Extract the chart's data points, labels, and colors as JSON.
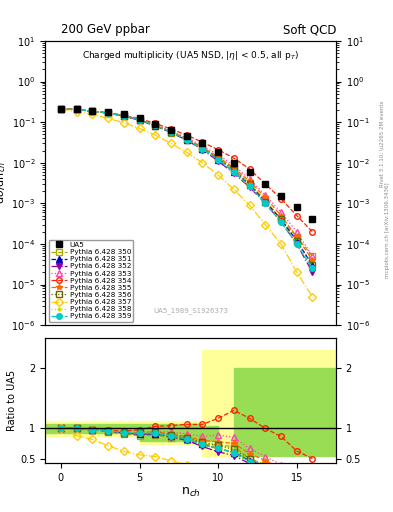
{
  "title_left": "200 GeV ppbar",
  "title_right": "Soft QCD",
  "plot_title": "Charged multiplicity (UA5 NSD, |\\u03b7| < 0.5, all p_T)",
  "xlabel": "n_{ch}",
  "ylabel_main": "d\\u03c3/dn_{ch}",
  "ylabel_ratio": "Ratio to UA5",
  "ref_label": "UA5_1989_S1926373",
  "right_label1": "Rivet 3.1.10; \\u2265 2M events",
  "right_label2": "mcplots.cern.ch [arXiv:1306.3436]",
  "nch": [
    0,
    1,
    2,
    3,
    4,
    5,
    6,
    7,
    8,
    9,
    10,
    11,
    12,
    13,
    14,
    15,
    16
  ],
  "ua5_data": [
    0.21,
    0.205,
    0.19,
    0.175,
    0.155,
    0.125,
    0.09,
    0.065,
    0.045,
    0.03,
    0.018,
    0.01,
    0.006,
    0.003,
    0.0015,
    0.0008,
    0.0004
  ],
  "ua5_color": "#000000",
  "series": [
    {
      "label": "Pythia 6.428 350",
      "color": "#aaaa00",
      "linestyle": "--",
      "marker": "s",
      "fillstyle": "none",
      "data": [
        0.21,
        0.205,
        0.185,
        0.165,
        0.14,
        0.11,
        0.08,
        0.055,
        0.036,
        0.022,
        0.013,
        0.007,
        0.003,
        0.0012,
        0.0004,
        0.00015,
        5e-05
      ]
    },
    {
      "label": "Pythia 6.428 351",
      "color": "#0000cc",
      "linestyle": "--",
      "marker": "^",
      "fillstyle": "full",
      "data": [
        0.21,
        0.205,
        0.185,
        0.168,
        0.143,
        0.113,
        0.082,
        0.057,
        0.037,
        0.022,
        0.012,
        0.006,
        0.0028,
        0.0011,
        0.0004,
        0.00012,
        3e-05
      ]
    },
    {
      "label": "Pythia 6.428 352",
      "color": "#8800aa",
      "linestyle": "-.",
      "marker": "v",
      "fillstyle": "full",
      "data": [
        0.21,
        0.205,
        0.185,
        0.168,
        0.143,
        0.113,
        0.082,
        0.056,
        0.036,
        0.021,
        0.011,
        0.0055,
        0.0025,
        0.001,
        0.00035,
        0.0001,
        2e-05
      ]
    },
    {
      "label": "Pythia 6.428 353",
      "color": "#ff44aa",
      "linestyle": ":",
      "marker": "^",
      "fillstyle": "none",
      "data": [
        0.21,
        0.205,
        0.185,
        0.168,
        0.145,
        0.117,
        0.086,
        0.061,
        0.041,
        0.026,
        0.016,
        0.0085,
        0.004,
        0.0016,
        0.0006,
        0.0002,
        5e-05
      ]
    },
    {
      "label": "Pythia 6.428 354",
      "color": "#ff2200",
      "linestyle": "--",
      "marker": "o",
      "fillstyle": "none",
      "data": [
        0.21,
        0.205,
        0.185,
        0.17,
        0.148,
        0.122,
        0.093,
        0.068,
        0.048,
        0.032,
        0.021,
        0.013,
        0.007,
        0.003,
        0.0013,
        0.0005,
        0.0002
      ]
    },
    {
      "label": "Pythia 6.428 355",
      "color": "#ff6600",
      "linestyle": "--",
      "marker": "*",
      "fillstyle": "full",
      "data": [
        0.21,
        0.205,
        0.185,
        0.168,
        0.145,
        0.116,
        0.085,
        0.059,
        0.039,
        0.024,
        0.014,
        0.0075,
        0.0035,
        0.0014,
        0.0005,
        0.00015,
        4e-05
      ]
    },
    {
      "label": "Pythia 6.428 356",
      "color": "#666600",
      "linestyle": ":",
      "marker": "s",
      "fillstyle": "none",
      "data": [
        0.21,
        0.205,
        0.185,
        0.168,
        0.144,
        0.115,
        0.084,
        0.058,
        0.038,
        0.023,
        0.013,
        0.0065,
        0.003,
        0.0011,
        0.0004,
        0.00012,
        3e-05
      ]
    },
    {
      "label": "Pythia 6.428 357",
      "color": "#ffcc00",
      "linestyle": "-.",
      "marker": "D",
      "fillstyle": "none",
      "data": [
        0.21,
        0.18,
        0.155,
        0.125,
        0.096,
        0.07,
        0.048,
        0.03,
        0.018,
        0.01,
        0.005,
        0.0022,
        0.0009,
        0.0003,
        0.0001,
        2e-05,
        5e-06
      ]
    },
    {
      "label": "Pythia 6.428 358",
      "color": "#ccdd00",
      "linestyle": ":",
      "marker": ".",
      "fillstyle": "full",
      "data": [
        0.21,
        0.205,
        0.185,
        0.168,
        0.144,
        0.115,
        0.083,
        0.057,
        0.037,
        0.022,
        0.012,
        0.0058,
        0.0026,
        0.001,
        0.00035,
        0.0001,
        2.5e-05
      ]
    },
    {
      "label": "Pythia 6.428 359",
      "color": "#00cccc",
      "linestyle": "--",
      "marker": "o",
      "fillstyle": "full",
      "data": [
        0.21,
        0.205,
        0.185,
        0.168,
        0.144,
        0.115,
        0.083,
        0.057,
        0.037,
        0.022,
        0.012,
        0.006,
        0.0027,
        0.001,
        0.00035,
        0.0001,
        2.5e-05
      ]
    }
  ],
  "xlim": [
    -1,
    17.5
  ],
  "ylim_main": [
    1e-06,
    10
  ],
  "ylim_ratio": [
    0.42,
    2.5
  ],
  "yellow_color": "#ffff99",
  "green_color": "#99dd55",
  "bands": [
    {
      "xmin": -1,
      "xmax": 9,
      "ymin": 0.88,
      "ymax": 1.12,
      "color": "#ffff99",
      "zorder": 1
    },
    {
      "xmin": -1,
      "xmax": 9,
      "ymin": 0.93,
      "ymax": 1.07,
      "color": "#99dd55",
      "zorder": 2
    },
    {
      "xmin": 5,
      "xmax": 10,
      "ymin": 0.74,
      "ymax": 1.1,
      "color": "#ffff99",
      "zorder": 1
    },
    {
      "xmin": 5,
      "xmax": 10,
      "ymin": 0.79,
      "ymax": 1.04,
      "color": "#99dd55",
      "zorder": 2
    },
    {
      "xmin": 9,
      "xmax": 17.5,
      "ymin": 0.55,
      "ymax": 2.3,
      "color": "#ffff99",
      "zorder": 1
    },
    {
      "xmin": 11,
      "xmax": 17.5,
      "ymin": 0.55,
      "ymax": 2.0,
      "color": "#99dd55",
      "zorder": 2
    }
  ]
}
